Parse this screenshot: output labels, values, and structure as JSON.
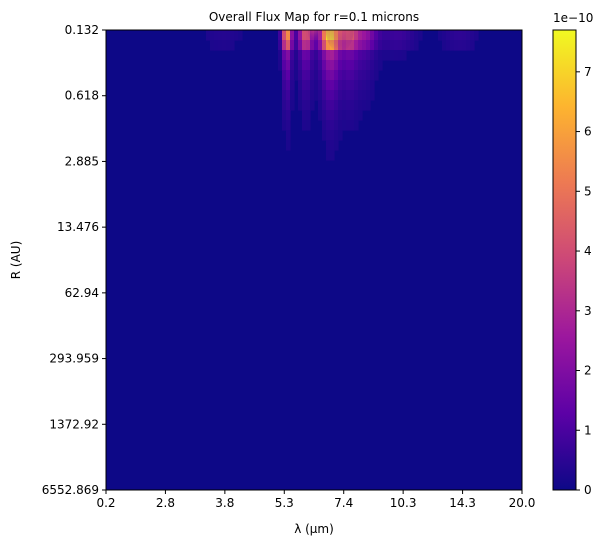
{
  "chart_data": {
    "type": "heatmap",
    "title": "Overall Flux Map for r=0.1 microns",
    "xlabel": "λ (μm)",
    "ylabel": "R (AU)",
    "x_tick_labels": [
      "0.2",
      "2.8",
      "3.8",
      "5.3",
      "7.4",
      "10.3",
      "14.3",
      "20.0"
    ],
    "y_tick_labels": [
      "0.132",
      "0.618",
      "2.885",
      "13.476",
      "62.94",
      "293.959",
      "1372.92",
      "6552.869"
    ],
    "colorbar": {
      "label": "",
      "offset_text": "1e−10",
      "tick_labels": [
        "0",
        "1",
        "2",
        "3",
        "4",
        "5",
        "6",
        "7"
      ],
      "range": [
        0,
        7.7
      ],
      "colormap": "plasma"
    },
    "peak_value": 7.7,
    "peak_location": {
      "lambda_um": 7.4,
      "R_AU": 0.132
    },
    "grid": false,
    "colors": {
      "background": "#0d0887",
      "plasma_stops": [
        "#0d0887",
        "#5c01a6",
        "#9c179e",
        "#cc4778",
        "#ed7953",
        "#fdb42f",
        "#f0f921"
      ]
    }
  }
}
